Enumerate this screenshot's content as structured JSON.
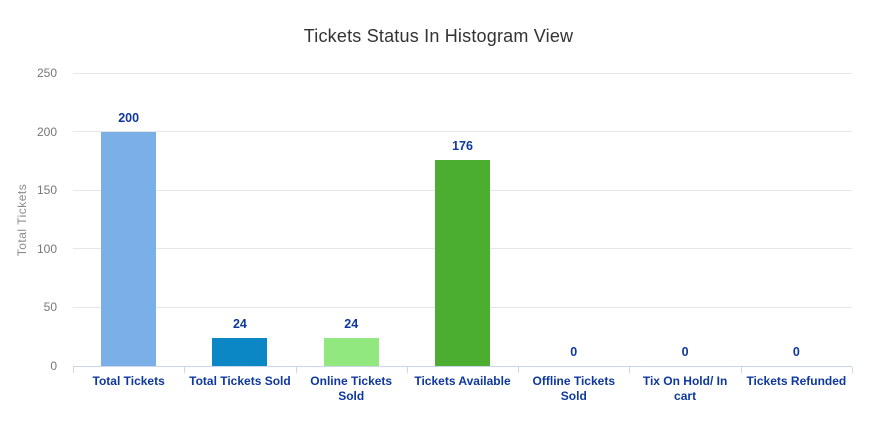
{
  "chart_data": {
    "type": "bar",
    "title": "Tickets Status In Histogram View",
    "ylabel": "Total Tickets",
    "xlabel": "",
    "categories": [
      "Total Tickets",
      "Total Tickets Sold",
      "Online Tickets\nSold",
      "Tickets Available",
      "Offline Tickets\nSold",
      "Tix On Hold/ In\ncart",
      "Tickets Refunded"
    ],
    "values": [
      200,
      24,
      24,
      176,
      0,
      0,
      0
    ],
    "yticks": [
      0,
      50,
      100,
      150,
      200,
      250
    ],
    "ylim": [
      0,
      250
    ],
    "grid": true,
    "legend": "none",
    "colors": {
      "bar_palette": [
        "#7aafe8",
        "#0b87c5",
        "#90e87e",
        "#4bae30"
      ],
      "value_label": "#0e389e",
      "category_label": "#0e389e",
      "axis_tick_label": "#777777",
      "axis_title": "#8c8c8c",
      "gridline": "#e6e6e6",
      "axis_line": "#ccd6eb",
      "title": "#333333"
    }
  }
}
